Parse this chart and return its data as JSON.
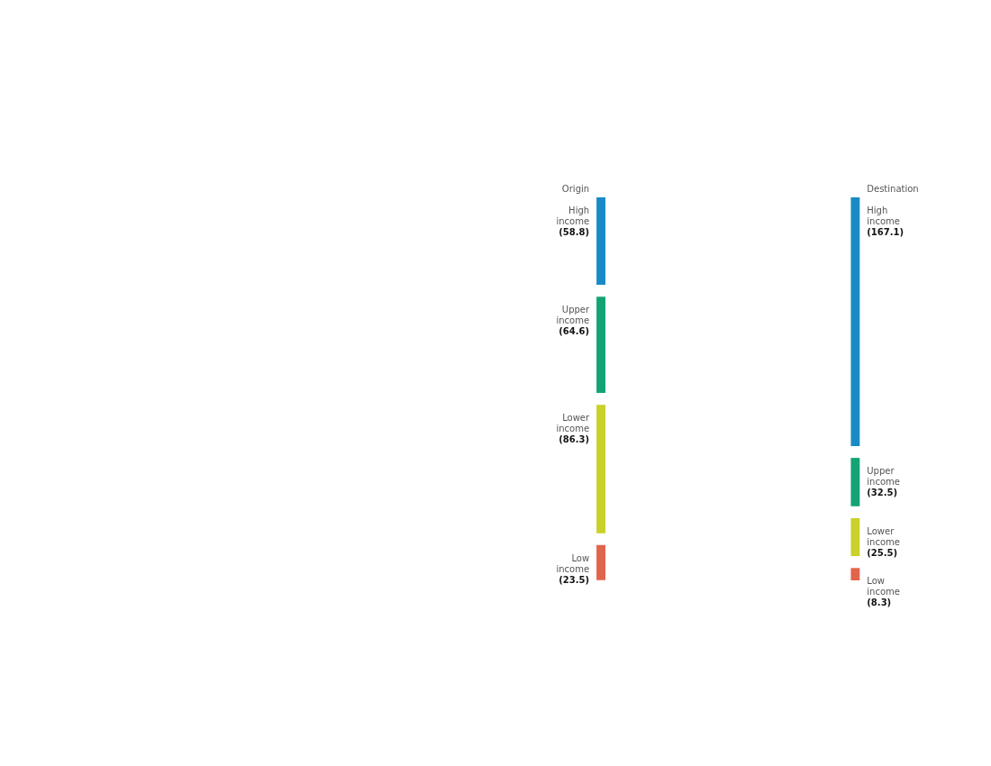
{
  "chart_data": {
    "type": "other",
    "categories": [
      "High income",
      "Upper income",
      "Lower income",
      "Low income"
    ],
    "colors": [
      "#1a8ac6",
      "#13a374",
      "#c9d12a",
      "#e0654a"
    ],
    "series": [
      {
        "name": "Origin",
        "values": [
          58.8,
          64.6,
          86.3,
          23.5
        ],
        "value_labels": [
          "(58.8)",
          "(64.6)",
          "(86.3)",
          "(23.5)"
        ]
      },
      {
        "name": "Destination",
        "values": [
          167.1,
          32.5,
          25.5,
          8.3
        ],
        "value_labels": [
          "(167.1)",
          "(32.5)",
          "(25.5)",
          "(8.3)"
        ]
      }
    ]
  }
}
